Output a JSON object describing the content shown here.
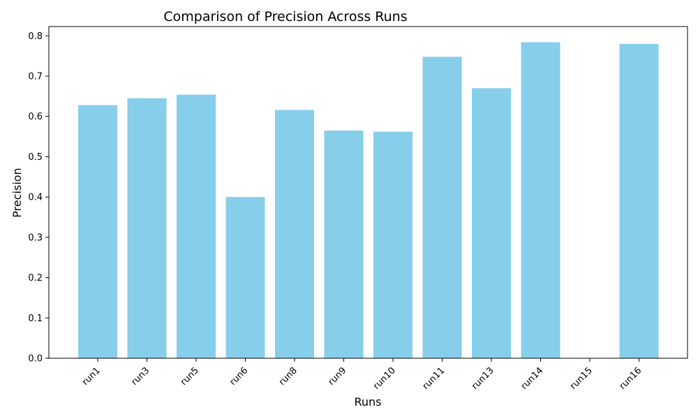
{
  "chart_data": {
    "type": "bar",
    "title": "Comparison of Precision Across Runs",
    "xlabel": "Runs",
    "ylabel": "Precision",
    "categories": [
      "run1",
      "run3",
      "run5",
      "run6",
      "run8",
      "run9",
      "run10",
      "run11",
      "run13",
      "run14",
      "run15",
      "run16"
    ],
    "values": [
      0.628,
      0.645,
      0.654,
      0.4,
      0.616,
      0.565,
      0.562,
      0.748,
      0.67,
      0.784,
      0.0,
      0.78
    ],
    "ylim": [
      0,
      0.823
    ],
    "yticks": [
      0.0,
      0.1,
      0.2,
      0.3,
      0.4,
      0.5,
      0.6,
      0.7,
      0.8
    ],
    "ytick_labels": [
      "0.0",
      "0.1",
      "0.2",
      "0.3",
      "0.4",
      "0.5",
      "0.6",
      "0.7",
      "0.8"
    ],
    "grid": false,
    "legend": "none",
    "bar_color": "#87ceeb"
  }
}
